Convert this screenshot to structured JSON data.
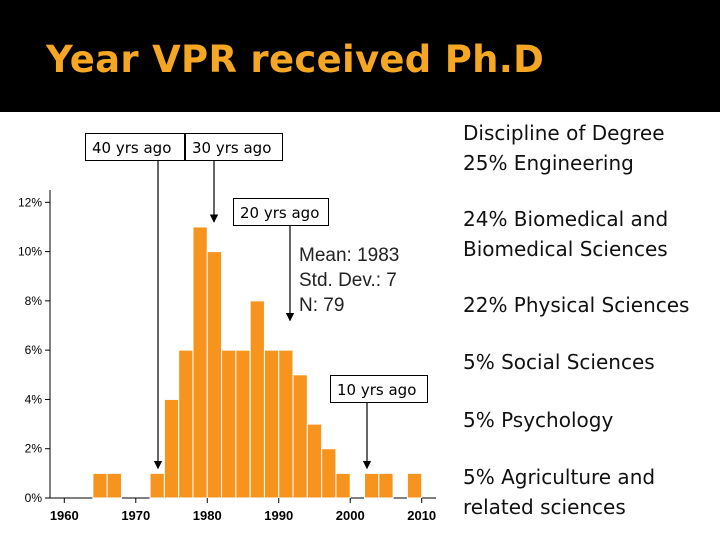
{
  "header": {
    "title": "Year VPR received Ph.D"
  },
  "annotations": {
    "forty": "40 yrs ago",
    "thirty": "30 yrs ago",
    "twenty": "20 yrs ago",
    "ten": "10 yrs ago"
  },
  "stats": {
    "mean": "Mean: 1983",
    "std": "Std. Dev.: 7",
    "n": "N: 79"
  },
  "disciplines": {
    "heading": "Discipline of Degree",
    "items": [
      "25% Engineering",
      "24% Biomedical and",
      "Biomedical Sciences",
      "22% Physical Sciences",
      "5% Social Sciences",
      "5% Psychology",
      "5% Agriculture and",
      "related sciences"
    ]
  },
  "colors": {
    "bar": "#f7941d",
    "bar_stroke": "#ffffff",
    "title": "#f5a623"
  },
  "chart_data": {
    "type": "bar",
    "title": "Year VPR received Ph.D",
    "xlabel": "",
    "ylabel": "",
    "xlim": [
      1958,
      2012
    ],
    "ylim": [
      0,
      12.5
    ],
    "x_ticks": [
      1960,
      1970,
      1980,
      1990,
      2000,
      2010
    ],
    "x_tick_labels": [
      "1960",
      "1970",
      "1980",
      "1990",
      "2000",
      "2010"
    ],
    "y_ticks": [
      0,
      2,
      4,
      6,
      8,
      10,
      12
    ],
    "y_tick_labels": [
      "0%",
      "2%",
      "4%",
      "6%",
      "8%",
      "10%",
      "12%"
    ],
    "bin_width": 2,
    "bins": [
      {
        "start": 1964,
        "value": 1
      },
      {
        "start": 1966,
        "value": 1
      },
      {
        "start": 1972,
        "value": 1
      },
      {
        "start": 1974,
        "value": 4
      },
      {
        "start": 1976,
        "value": 6
      },
      {
        "start": 1978,
        "value": 11
      },
      {
        "start": 1980,
        "value": 10
      },
      {
        "start": 1982,
        "value": 6
      },
      {
        "start": 1984,
        "value": 6
      },
      {
        "start": 1986,
        "value": 8
      },
      {
        "start": 1988,
        "value": 6
      },
      {
        "start": 1990,
        "value": 6
      },
      {
        "start": 1992,
        "value": 5
      },
      {
        "start": 1994,
        "value": 3
      },
      {
        "start": 1996,
        "value": 2
      },
      {
        "start": 1998,
        "value": 1
      },
      {
        "start": 2002,
        "value": 1
      },
      {
        "start": 2004,
        "value": 1
      },
      {
        "start": 2008,
        "value": 1
      }
    ],
    "arrows": [
      {
        "label": "40 yrs ago",
        "year": 1972
      },
      {
        "label": "30 yrs ago",
        "year": 1982
      },
      {
        "label": "20 yrs ago",
        "year": 1992
      },
      {
        "label": "10 yrs ago",
        "year": 2002
      }
    ]
  }
}
